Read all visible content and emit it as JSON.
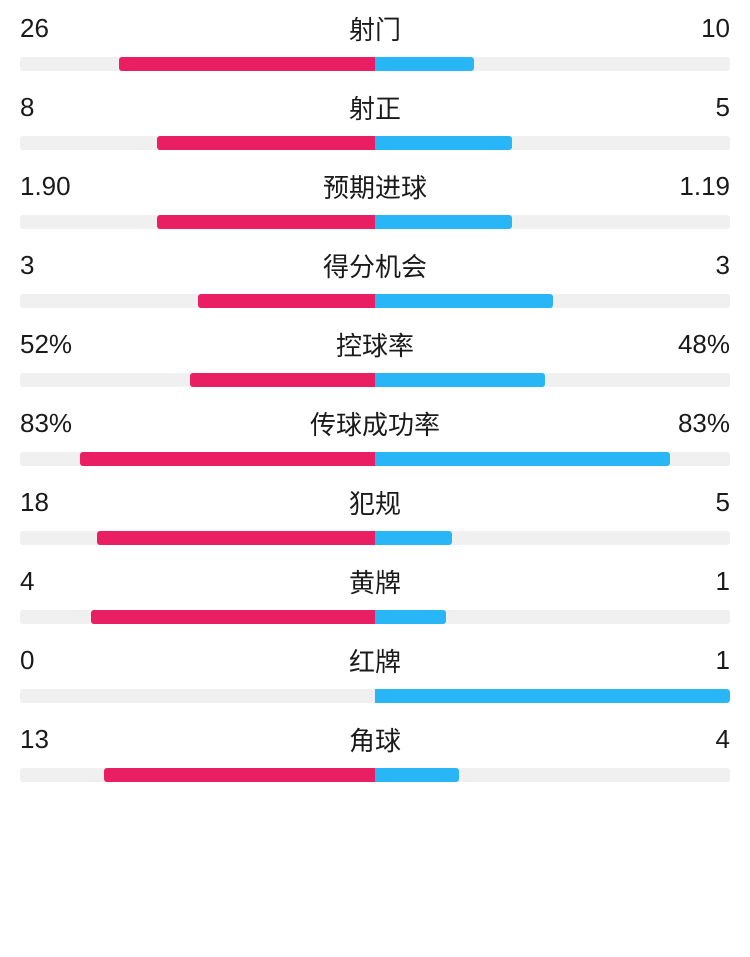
{
  "colors": {
    "left_bar": "#e91e63",
    "right_bar": "#29b6f6",
    "track": "#f0f0f0",
    "text": "#1a1a1a"
  },
  "stats": [
    {
      "label": "射门",
      "left_value": "26",
      "right_value": "10",
      "left_pct": 72,
      "right_pct": 27.78
    },
    {
      "label": "射正",
      "left_value": "8",
      "right_value": "5",
      "left_pct": 61.54,
      "right_pct": 38.46
    },
    {
      "label": "预期进球",
      "left_value": "1.90",
      "right_value": "1.19",
      "left_pct": 61.49,
      "right_pct": 38.51
    },
    {
      "label": "得分机会",
      "left_value": "3",
      "right_value": "3",
      "left_pct": 50,
      "right_pct": 50
    },
    {
      "label": "控球率",
      "left_value": "52%",
      "right_value": "48%",
      "left_pct": 52,
      "right_pct": 48
    },
    {
      "label": "传球成功率",
      "left_value": "83%",
      "right_value": "83%",
      "left_pct": 83,
      "right_pct": 83
    },
    {
      "label": "犯规",
      "left_value": "18",
      "right_value": "5",
      "left_pct": 78.26,
      "right_pct": 21.74
    },
    {
      "label": "黄牌",
      "left_value": "4",
      "right_value": "1",
      "left_pct": 80,
      "right_pct": 20
    },
    {
      "label": "红牌",
      "left_value": "0",
      "right_value": "1",
      "left_pct": 0,
      "right_pct": 100
    },
    {
      "label": "角球",
      "left_value": "13",
      "right_value": "4",
      "left_pct": 76.47,
      "right_pct": 23.53
    }
  ]
}
